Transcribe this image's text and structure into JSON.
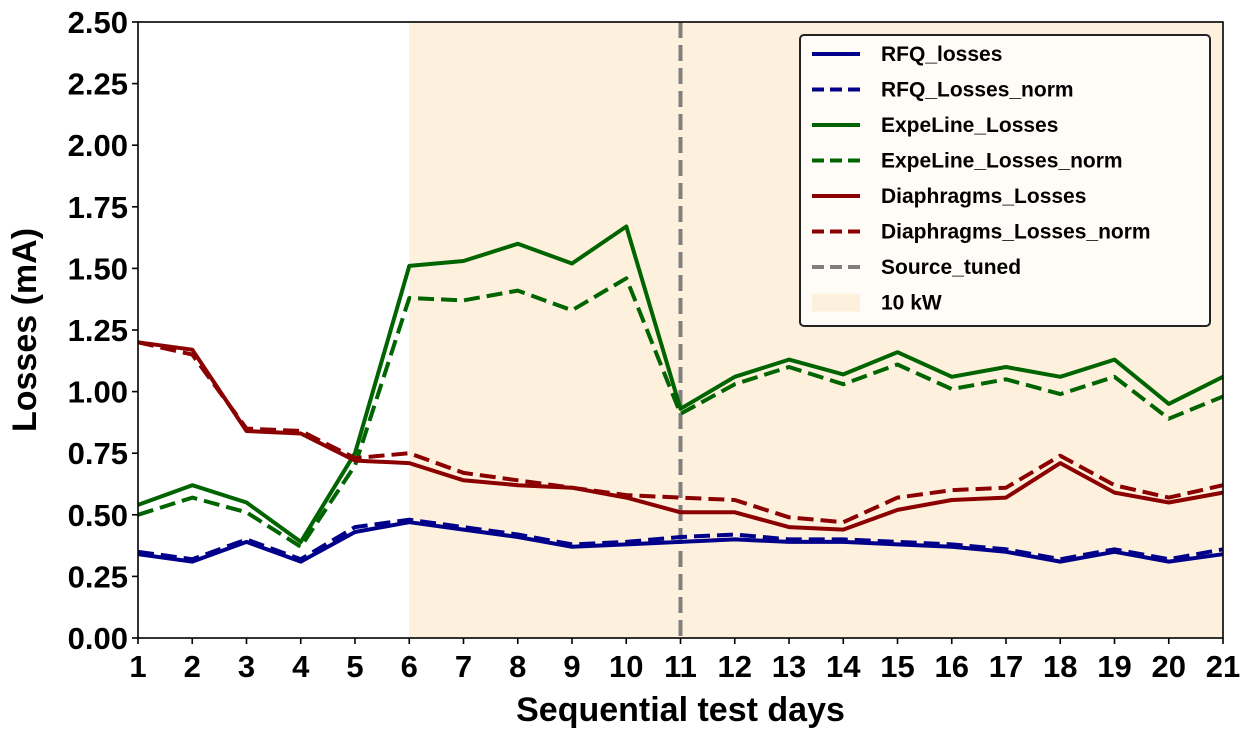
{
  "chart_data": {
    "type": "line",
    "xlabel": "Sequential test days",
    "ylabel": "Losses (mA)",
    "xlim": [
      1,
      21
    ],
    "ylim": [
      0,
      2.5
    ],
    "x": [
      1,
      2,
      3,
      4,
      5,
      6,
      7,
      8,
      9,
      10,
      11,
      12,
      13,
      14,
      15,
      16,
      17,
      18,
      19,
      20,
      21
    ],
    "xticks": [
      "1",
      "2",
      "3",
      "4",
      "5",
      "6",
      "7",
      "8",
      "9",
      "10",
      "11",
      "12",
      "13",
      "14",
      "15",
      "16",
      "17",
      "18",
      "19",
      "20",
      "21"
    ],
    "yticks": [
      "0.00",
      "0.25",
      "0.50",
      "0.75",
      "1.00",
      "1.25",
      "1.50",
      "1.75",
      "2.00",
      "2.25",
      "2.50"
    ],
    "grid": false,
    "legend_position": "top-right",
    "shaded_region": {
      "label": "10 kW",
      "x_start": 6,
      "x_end": 21,
      "color": "#fdf1dd"
    },
    "vertical_line": {
      "label": "Source_tuned",
      "x": 11,
      "color": "#7f7f7f",
      "style": "dashed"
    },
    "series": [
      {
        "name": "RFQ_losses",
        "color": "#00008b",
        "style": "solid",
        "values": [
          0.34,
          0.31,
          0.39,
          0.31,
          0.43,
          0.47,
          0.44,
          0.41,
          0.37,
          0.38,
          0.39,
          0.4,
          0.39,
          0.39,
          0.38,
          0.37,
          0.35,
          0.31,
          0.35,
          0.31,
          0.34
        ]
      },
      {
        "name": "RFQ_Losses_norm",
        "color": "#00008b",
        "style": "dashed",
        "values": [
          0.35,
          0.32,
          0.4,
          0.32,
          0.45,
          0.48,
          0.45,
          0.42,
          0.38,
          0.39,
          0.41,
          0.42,
          0.4,
          0.4,
          0.39,
          0.38,
          0.36,
          0.32,
          0.36,
          0.32,
          0.36
        ]
      },
      {
        "name": "ExpeLine_Losses",
        "color": "#006400",
        "style": "solid",
        "values": [
          0.54,
          0.62,
          0.55,
          0.39,
          0.75,
          1.51,
          1.53,
          1.6,
          1.52,
          1.67,
          0.93,
          1.06,
          1.13,
          1.07,
          1.16,
          1.06,
          1.1,
          1.06,
          1.13,
          0.95,
          1.06
        ]
      },
      {
        "name": "ExpeLine_Losses_norm",
        "color": "#006400",
        "style": "dashed",
        "values": [
          0.5,
          0.57,
          0.51,
          0.37,
          0.7,
          1.38,
          1.37,
          1.41,
          1.33,
          1.46,
          0.91,
          1.03,
          1.1,
          1.03,
          1.11,
          1.01,
          1.05,
          0.99,
          1.06,
          0.89,
          0.98
        ]
      },
      {
        "name": "Diaphragms_Losses",
        "color": "#8b0000",
        "style": "solid",
        "values": [
          1.2,
          1.17,
          0.84,
          0.83,
          0.72,
          0.71,
          0.64,
          0.62,
          0.61,
          0.57,
          0.51,
          0.51,
          0.45,
          0.44,
          0.52,
          0.56,
          0.57,
          0.71,
          0.59,
          0.55,
          0.59
        ]
      },
      {
        "name": "Diaphragms_Losses_norm",
        "color": "#8b0000",
        "style": "dashed",
        "values": [
          1.2,
          1.15,
          0.85,
          0.84,
          0.73,
          0.75,
          0.67,
          0.64,
          0.61,
          0.58,
          0.57,
          0.56,
          0.49,
          0.47,
          0.57,
          0.6,
          0.61,
          0.74,
          0.62,
          0.57,
          0.62
        ]
      }
    ]
  }
}
